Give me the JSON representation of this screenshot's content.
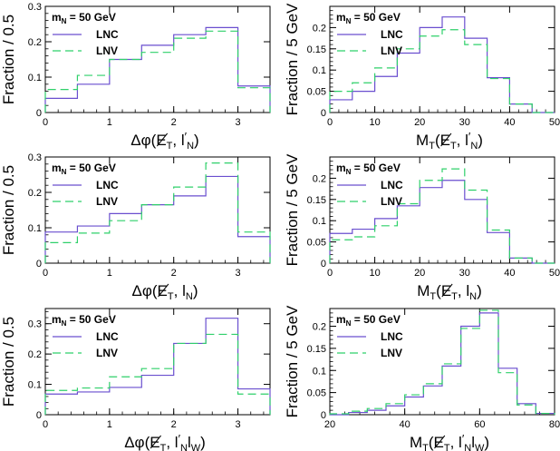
{
  "colors": {
    "lnc": "#6a4fcf",
    "lnv": "#2fd06a",
    "frame": "#000000",
    "background": "#ffffff"
  },
  "chart_data": [
    {
      "type": "histogram",
      "mass_label": "m",
      "mass_sub": "N",
      "mass_value": "= 50 GeV",
      "ylabel": "Fraction / 0.5",
      "xlabel": {
        "main": "Δφ(E",
        "sub1": "T",
        "comma": ", l",
        "prime": "′",
        "sub2": "N",
        "tail": ")"
      },
      "xlim": [
        0,
        3.5
      ],
      "ylim": [
        0,
        0.3
      ],
      "xticks": [
        0,
        1,
        2,
        3
      ],
      "yticks": [
        0,
        0.1,
        0.2,
        0.3
      ],
      "xtick_labels": [
        "0",
        "1",
        "2",
        "3"
      ],
      "ytick_labels": [
        "0",
        "0.1",
        "0.2",
        "0.3"
      ],
      "bin_edges": [
        0,
        0.5,
        1,
        1.5,
        2,
        2.5,
        3,
        3.5
      ],
      "series": [
        {
          "name": "LNC",
          "values": [
            0.04,
            0.08,
            0.15,
            0.19,
            0.22,
            0.24,
            0.075
          ]
        },
        {
          "name": "LNV",
          "values": [
            0.065,
            0.105,
            0.15,
            0.17,
            0.21,
            0.23,
            0.07
          ]
        }
      ]
    },
    {
      "type": "histogram",
      "mass_label": "m",
      "mass_sub": "N",
      "mass_value": "= 50 GeV",
      "ylabel": "Fraction / 5 GeV",
      "xlabel": {
        "main": "M",
        "msub": "T",
        "mid": "(E",
        "sub1": "T",
        "comma": ", l",
        "prime": "′",
        "sub2": "N",
        "tail": ")"
      },
      "xlim": [
        0,
        50
      ],
      "ylim": [
        0,
        0.25
      ],
      "xticks": [
        0,
        10,
        20,
        30,
        40,
        50
      ],
      "yticks": [
        0,
        0.05,
        0.1,
        0.15,
        0.2
      ],
      "xtick_labels": [
        "0",
        "10",
        "20",
        "30",
        "40",
        "50"
      ],
      "ytick_labels": [
        "0",
        "0.05",
        "0.1",
        "0.15",
        "0.2"
      ],
      "bin_edges": [
        0,
        5,
        10,
        15,
        20,
        25,
        30,
        35,
        40,
        45,
        50
      ],
      "series": [
        {
          "name": "LNC",
          "values": [
            0.03,
            0.05,
            0.085,
            0.14,
            0.2,
            0.225,
            0.175,
            0.082,
            0.02,
            0
          ]
        },
        {
          "name": "LNV",
          "values": [
            0.05,
            0.07,
            0.105,
            0.15,
            0.18,
            0.195,
            0.16,
            0.08,
            0.02,
            0
          ]
        }
      ]
    },
    {
      "type": "histogram",
      "mass_label": "m",
      "mass_sub": "N",
      "mass_value": "= 50 GeV",
      "ylabel": "Fraction / 0.5",
      "xlabel": {
        "main": "Δφ(E",
        "sub1": "T",
        "comma": ", l",
        "prime": "",
        "sub2": "N",
        "tail": ")"
      },
      "xlim": [
        0,
        3.5
      ],
      "ylim": [
        0,
        0.3
      ],
      "xticks": [
        0,
        1,
        2,
        3
      ],
      "yticks": [
        0,
        0.1,
        0.2,
        0.3
      ],
      "xtick_labels": [
        "0",
        "1",
        "2",
        "3"
      ],
      "ytick_labels": [
        "0",
        "0.1",
        "0.2",
        "0.3"
      ],
      "bin_edges": [
        0,
        0.5,
        1,
        1.5,
        2,
        2.5,
        3,
        3.5
      ],
      "series": [
        {
          "name": "LNC",
          "values": [
            0.088,
            0.105,
            0.14,
            0.165,
            0.19,
            0.245,
            0.075
          ]
        },
        {
          "name": "LNV",
          "values": [
            0.058,
            0.085,
            0.12,
            0.165,
            0.215,
            0.283,
            0.088
          ]
        }
      ]
    },
    {
      "type": "histogram",
      "mass_label": "m",
      "mass_sub": "N",
      "mass_value": "= 50 GeV",
      "ylabel": "Fraction / 5 GeV",
      "xlabel": {
        "main": "M",
        "msub": "T",
        "mid": "(E",
        "sub1": "T",
        "comma": ", l",
        "prime": "",
        "sub2": "N",
        "tail": ")"
      },
      "xlim": [
        0,
        50
      ],
      "ylim": [
        0,
        0.25
      ],
      "xticks": [
        0,
        10,
        20,
        30,
        40,
        50
      ],
      "yticks": [
        0,
        0.05,
        0.1,
        0.15,
        0.2
      ],
      "xtick_labels": [
        "0",
        "10",
        "20",
        "30",
        "40",
        "50"
      ],
      "ytick_labels": [
        "0",
        "0.05",
        "0.1",
        "0.15",
        "0.2"
      ],
      "bin_edges": [
        0,
        5,
        10,
        15,
        20,
        25,
        30,
        35,
        40,
        45,
        50
      ],
      "series": [
        {
          "name": "LNC",
          "values": [
            0.07,
            0.08,
            0.105,
            0.135,
            0.178,
            0.195,
            0.15,
            0.072,
            0.012,
            0
          ]
        },
        {
          "name": "LNV",
          "values": [
            0.055,
            0.062,
            0.088,
            0.14,
            0.195,
            0.222,
            0.172,
            0.078,
            0.012,
            0
          ]
        }
      ]
    },
    {
      "type": "histogram",
      "mass_label": "m",
      "mass_sub": "N",
      "mass_value": "= 50 GeV",
      "ylabel": "Fraction / 0.5",
      "xlabel": {
        "main": "Δφ(E",
        "sub1": "T",
        "comma": ", l",
        "prime": "′",
        "sub2": "N",
        "tail2": "l",
        "sub3": "W",
        "tail": ")"
      },
      "xlim": [
        0,
        3.5
      ],
      "ylim": [
        0,
        0.35
      ],
      "xticks": [
        0,
        1,
        2,
        3
      ],
      "yticks": [
        0,
        0.1,
        0.2,
        0.3
      ],
      "xtick_labels": [
        "0",
        "1",
        "2",
        "3"
      ],
      "ytick_labels": [
        "0",
        "0.1",
        "0.2",
        "0.3"
      ],
      "bin_edges": [
        0,
        0.5,
        1,
        1.5,
        2,
        2.5,
        3,
        3.5
      ],
      "series": [
        {
          "name": "LNC",
          "values": [
            0.068,
            0.075,
            0.09,
            0.13,
            0.235,
            0.318,
            0.085
          ]
        },
        {
          "name": "LNV",
          "values": [
            0.08,
            0.088,
            0.125,
            0.152,
            0.235,
            0.265,
            0.068
          ]
        }
      ]
    },
    {
      "type": "histogram",
      "mass_label": "m",
      "mass_sub": "N",
      "mass_value": "= 50 GeV",
      "ylabel": "Fraction / 5 GeV",
      "xlabel": {
        "main": "M",
        "msub": "T",
        "mid": "(E",
        "sub1": "T",
        "comma": ", l",
        "prime": "′",
        "sub2": "N",
        "tail2": "l",
        "sub3": "W",
        "tail": ")"
      },
      "xlim": [
        20,
        80
      ],
      "ylim": [
        0,
        0.24
      ],
      "xticks": [
        20,
        40,
        60,
        80
      ],
      "yticks": [
        0,
        0.05,
        0.1,
        0.15,
        0.2
      ],
      "xtick_labels": [
        "20",
        "40",
        "60",
        "80"
      ],
      "ytick_labels": [
        "0",
        "0.05",
        "0.1",
        "0.15",
        "0.2"
      ],
      "bin_edges": [
        20,
        25,
        30,
        35,
        40,
        45,
        50,
        55,
        60,
        65,
        70,
        75,
        80
      ],
      "series": [
        {
          "name": "LNC",
          "values": [
            0,
            0.005,
            0.01,
            0.02,
            0.04,
            0.065,
            0.11,
            0.2,
            0.23,
            0.105,
            0.025,
            0.003
          ]
        },
        {
          "name": "LNV",
          "values": [
            0.002,
            0.008,
            0.014,
            0.025,
            0.045,
            0.07,
            0.115,
            0.195,
            0.236,
            0.095,
            0.022,
            0.003
          ]
        }
      ]
    }
  ]
}
